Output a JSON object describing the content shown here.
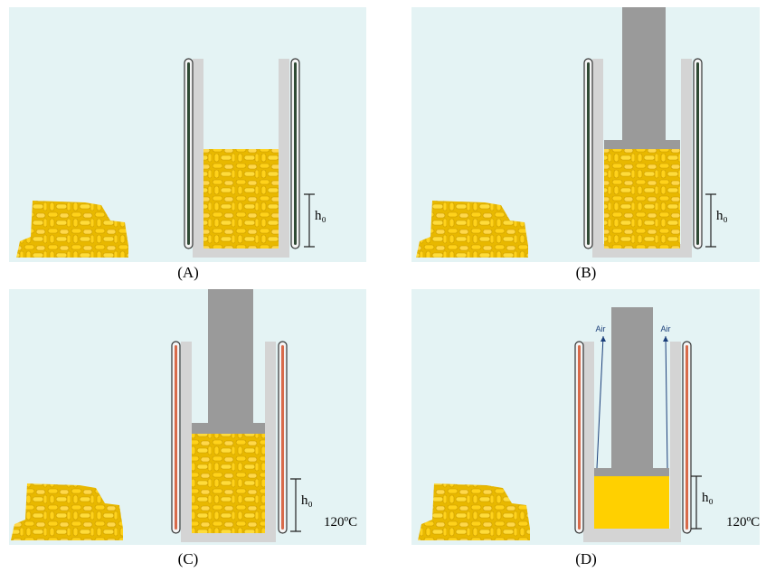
{
  "panels": [
    {
      "label": "(A)",
      "height_label": "h₀"
    },
    {
      "label": "(B)",
      "height_label": "h₀"
    },
    {
      "label": "(C)",
      "height_label": "h₀",
      "temperature": "120ºC"
    },
    {
      "label": "(D)",
      "height_label": "h₀",
      "temperature": "120ºC",
      "flow_labels": [
        "Air",
        "Air"
      ]
    }
  ]
}
